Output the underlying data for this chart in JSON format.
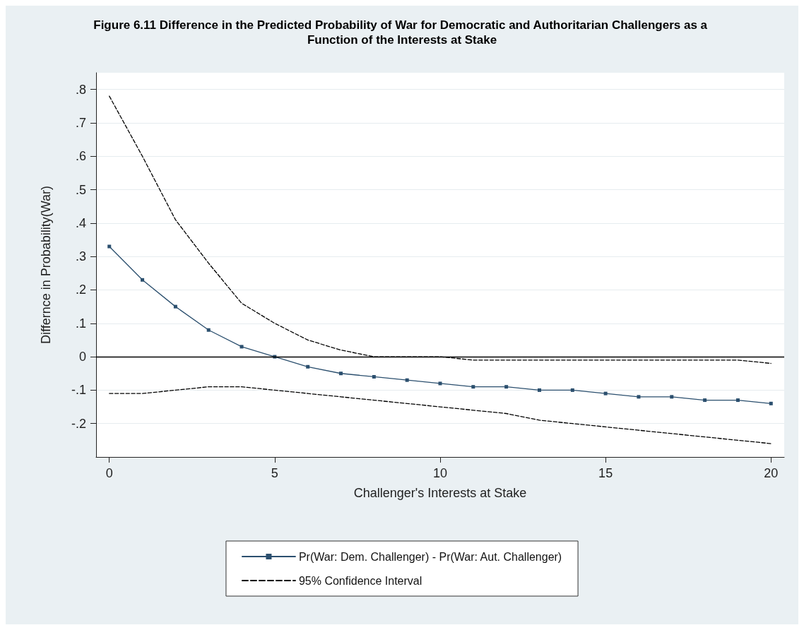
{
  "chart_data": {
    "type": "line",
    "title": "Figure 6.11 Difference in the Predicted Probability of War for Democratic and Authoritarian Challengers as a Function of the Interests at Stake",
    "xlabel": "Challenger's Interests at Stake",
    "ylabel": "Differnce in Probability(War)",
    "x": [
      0,
      1,
      2,
      3,
      4,
      5,
      6,
      7,
      8,
      9,
      10,
      11,
      12,
      13,
      14,
      15,
      16,
      17,
      18,
      19,
      20
    ],
    "series": [
      {
        "name": "Pr(War: Dem. Challenger) - Pr(War: Aut. Challenger)",
        "color": "#2b4f6e",
        "marker": "square",
        "line_style": "solid",
        "values": [
          0.33,
          0.23,
          0.15,
          0.08,
          0.03,
          0,
          -0.03,
          -0.05,
          -0.06,
          -0.07,
          -0.08,
          -0.09,
          -0.09,
          -0.1,
          -0.1,
          -0.11,
          -0.12,
          -0.12,
          -0.13,
          -0.13,
          -0.14
        ]
      },
      {
        "name": "95% Confidence Interval",
        "color": "#000000",
        "marker": "none",
        "line_style": "dashed",
        "values": [
          0.78,
          0.6,
          0.41,
          0.28,
          0.16,
          0.1,
          0.05,
          0.02,
          0,
          0,
          0,
          -0.01,
          -0.01,
          -0.01,
          -0.01,
          -0.01,
          -0.01,
          -0.01,
          -0.01,
          -0.01,
          -0.02
        ]
      },
      {
        "color": "#000000",
        "marker": "none",
        "line_style": "dashed",
        "values": [
          -0.11,
          -0.11,
          -0.1,
          -0.09,
          -0.09,
          -0.1,
          -0.11,
          -0.12,
          -0.13,
          -0.14,
          -0.15,
          -0.16,
          -0.17,
          -0.19,
          -0.2,
          -0.21,
          -0.22,
          -0.23,
          -0.24,
          -0.25,
          -0.26
        ]
      }
    ],
    "xlim": [
      -0.4,
      20.4
    ],
    "xticks": [
      0,
      5,
      10,
      15,
      20
    ],
    "ylim": [
      -0.3,
      0.85
    ],
    "yticks": [
      {
        "value": -0.2,
        "label": "-.2"
      },
      {
        "value": -0.1,
        "label": "-.1"
      },
      0,
      {
        "value": 0.1,
        "label": ".1"
      },
      {
        "value": 0.2,
        "label": ".2"
      },
      {
        "value": 0.3,
        "label": ".3"
      },
      {
        "value": 0.4,
        "label": ".4"
      },
      {
        "value": 0.5,
        "label": ".5"
      },
      {
        "value": 0.6,
        "label": ".6"
      },
      {
        "value": 0.7,
        "label": ".7"
      },
      {
        "value": 0.8,
        "label": ".8"
      }
    ],
    "ref_lines": [
      {
        "axis": "y",
        "value": 0,
        "color": "#000000",
        "line_style": "solid"
      }
    ],
    "grid": "y",
    "legend": "bottom"
  }
}
